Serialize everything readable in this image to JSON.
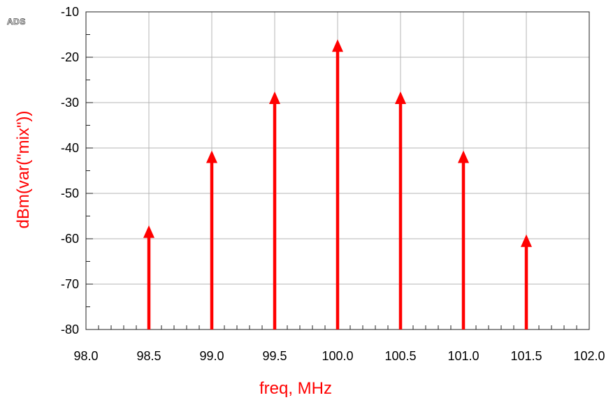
{
  "watermark": "ADS",
  "chart_data": {
    "type": "stem",
    "title": "",
    "xlabel": "freq, MHz",
    "ylabel": "dBm(var(\"mix\"))",
    "xlim": [
      98.0,
      102.0
    ],
    "ylim": [
      -80,
      -10
    ],
    "x_ticks": [
      "98.0",
      "98.5",
      "99.0",
      "99.5",
      "100.0",
      "100.5",
      "101.0",
      "101.5",
      "102.0"
    ],
    "y_ticks": [
      "-10",
      "-20",
      "-30",
      "-40",
      "-50",
      "-60",
      "-70",
      "-80"
    ],
    "grid": true,
    "series": [
      {
        "color": "#ff0000",
        "x": [
          98.5,
          99.0,
          99.5,
          100.0,
          100.5,
          101.0,
          101.5
        ],
        "y": [
          -57.5,
          -41.0,
          -28.0,
          -16.5,
          -28.0,
          -41.0,
          -59.5
        ]
      }
    ]
  }
}
